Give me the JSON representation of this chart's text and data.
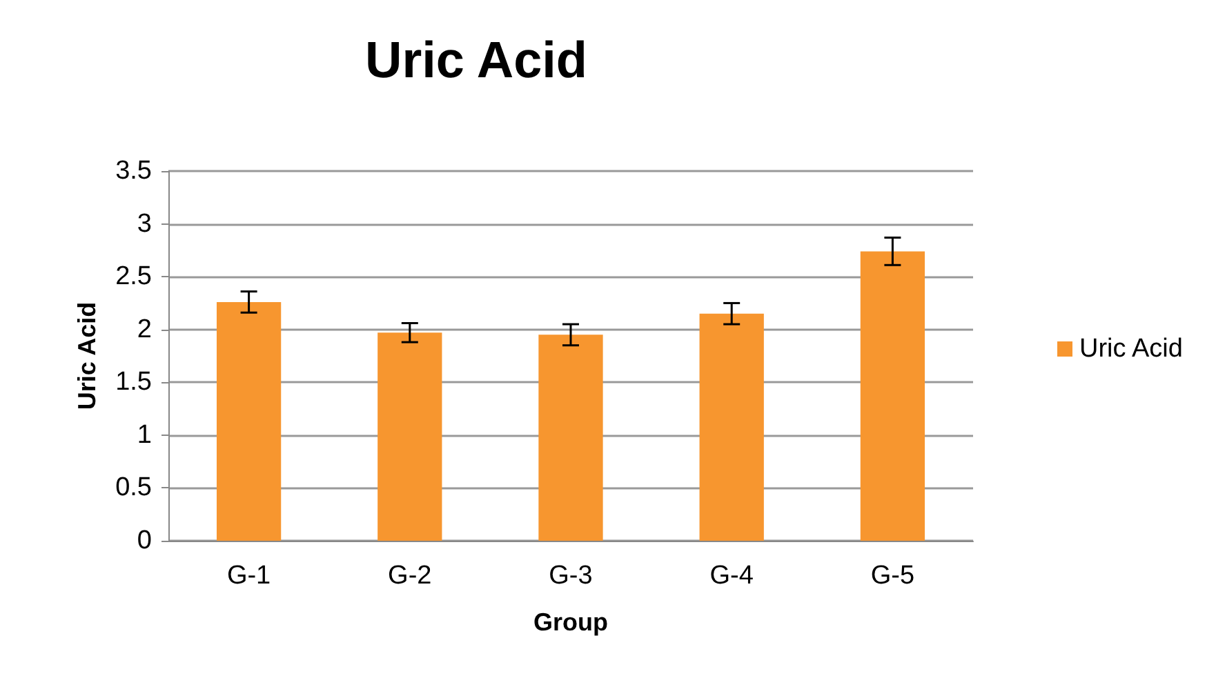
{
  "chart_data": {
    "type": "bar",
    "title": "Uric Acid",
    "xlabel": "Group",
    "ylabel": "Uric Acid",
    "categories": [
      "G-1",
      "G-2",
      "G-3",
      "G-4",
      "G-5"
    ],
    "series": [
      {
        "name": "Uric Acid",
        "color": "#f7962f",
        "values": [
          2.26,
          1.97,
          1.95,
          2.15,
          2.74
        ],
        "errors": [
          0.1,
          0.09,
          0.1,
          0.1,
          0.13
        ]
      }
    ],
    "ylim": [
      0,
      3.5
    ],
    "yticks": [
      0,
      0.5,
      1,
      1.5,
      2,
      2.5,
      3,
      3.5
    ],
    "grid": "y",
    "legend": "right"
  }
}
